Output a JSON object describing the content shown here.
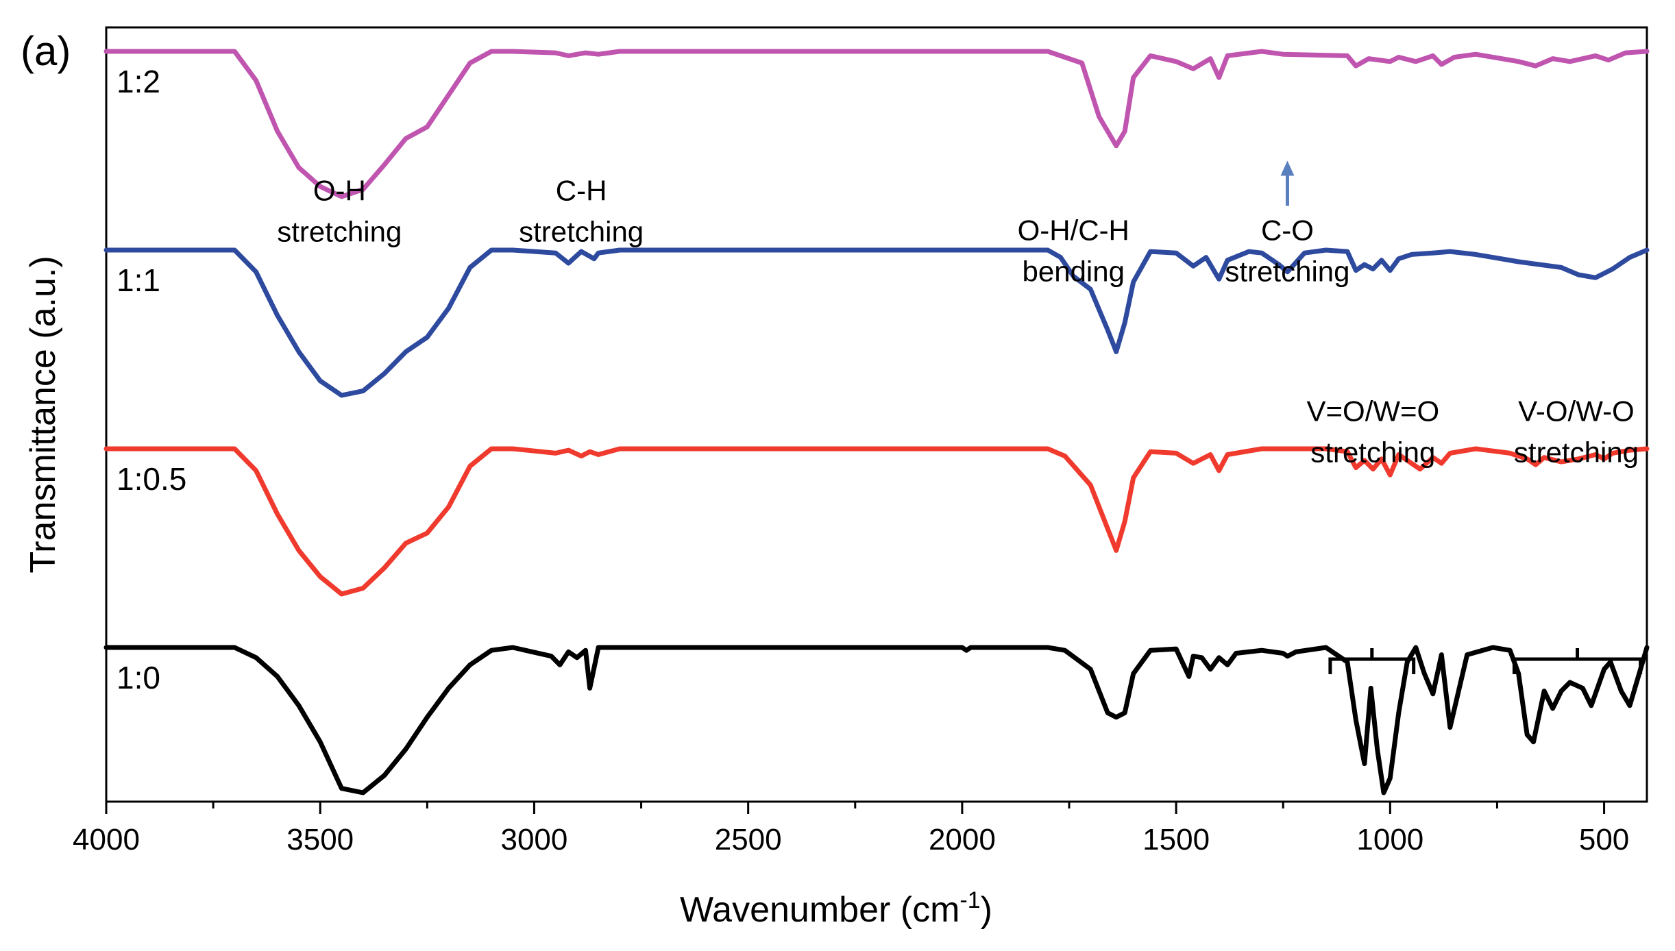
{
  "chart_data": {
    "type": "line",
    "panel_label": "(a)",
    "xlabel": "Wavenumber (cm",
    "xlabel_sup": "-1",
    "xlabel_end": ")",
    "ylabel": "Transmittance (a.u.)",
    "xlim": [
      4000,
      400
    ],
    "x_reversed": true,
    "y_ticks_labeled": false,
    "xticks": [
      4000,
      3500,
      3000,
      2500,
      2000,
      1500,
      1000,
      500
    ],
    "series": [
      {
        "name": "1:2",
        "color": "#c055b0",
        "offset": 3,
        "baseline": 1.0,
        "x": [
          4000,
          3700,
          3650,
          3600,
          3550,
          3500,
          3450,
          3400,
          3350,
          3300,
          3250,
          3200,
          3150,
          3100,
          3050,
          2950,
          2920,
          2880,
          2850,
          2800,
          1800,
          1720,
          1680,
          1640,
          1620,
          1600,
          1560,
          1500,
          1460,
          1420,
          1400,
          1380,
          1300,
          1250,
          1100,
          1080,
          1050,
          1000,
          980,
          940,
          900,
          880,
          850,
          800,
          700,
          660,
          620,
          580,
          520,
          490,
          450,
          400
        ],
        "y": [
          1.0,
          1.0,
          0.8,
          0.45,
          0.2,
          0.07,
          0.0,
          0.05,
          0.22,
          0.4,
          0.48,
          0.7,
          0.92,
          1.0,
          1.0,
          0.99,
          0.97,
          0.99,
          0.98,
          1.0,
          1.0,
          0.92,
          0.55,
          0.35,
          0.45,
          0.82,
          0.97,
          0.93,
          0.88,
          0.95,
          0.82,
          0.97,
          1.0,
          0.98,
          0.97,
          0.9,
          0.95,
          0.93,
          0.96,
          0.93,
          0.97,
          0.91,
          0.96,
          0.98,
          0.93,
          0.9,
          0.95,
          0.93,
          0.97,
          0.94,
          0.99,
          1.0
        ]
      },
      {
        "name": "1:1",
        "color": "#2e4a9e",
        "offset": 2,
        "baseline": 1.0,
        "x": [
          4000,
          3700,
          3650,
          3600,
          3550,
          3500,
          3450,
          3400,
          3350,
          3300,
          3250,
          3200,
          3150,
          3100,
          3050,
          2950,
          2920,
          2890,
          2860,
          2850,
          2800,
          1800,
          1770,
          1740,
          1700,
          1660,
          1640,
          1620,
          1600,
          1560,
          1500,
          1460,
          1430,
          1400,
          1380,
          1330,
          1300,
          1260,
          1240,
          1200,
          1150,
          1100,
          1080,
          1060,
          1040,
          1020,
          1000,
          980,
          950,
          900,
          860,
          800,
          700,
          600,
          560,
          520,
          480,
          440,
          400
        ],
        "y": [
          1.0,
          1.0,
          0.85,
          0.55,
          0.3,
          0.1,
          0.0,
          0.03,
          0.15,
          0.3,
          0.4,
          0.6,
          0.88,
          1.0,
          1.0,
          0.98,
          0.91,
          0.99,
          0.94,
          0.98,
          1.0,
          1.0,
          0.95,
          0.82,
          0.73,
          0.45,
          0.3,
          0.5,
          0.78,
          0.99,
          0.98,
          0.89,
          0.95,
          0.8,
          0.93,
          0.99,
          0.98,
          0.9,
          0.85,
          0.98,
          1.0,
          0.99,
          0.86,
          0.9,
          0.87,
          0.93,
          0.86,
          0.94,
          0.97,
          0.98,
          0.99,
          0.97,
          0.92,
          0.88,
          0.83,
          0.81,
          0.87,
          0.95,
          1.0
        ]
      },
      {
        "name": "1:0.5",
        "color": "#f03a2e",
        "offset": 1,
        "baseline": 1.0,
        "x": [
          4000,
          3700,
          3650,
          3600,
          3550,
          3500,
          3450,
          3400,
          3350,
          3300,
          3250,
          3200,
          3150,
          3100,
          3050,
          2950,
          2920,
          2890,
          2870,
          2850,
          2800,
          1800,
          1760,
          1700,
          1660,
          1640,
          1620,
          1600,
          1560,
          1500,
          1460,
          1420,
          1400,
          1380,
          1300,
          1150,
          1100,
          1080,
          1060,
          1040,
          1020,
          1000,
          980,
          960,
          930,
          900,
          880,
          860,
          800,
          720,
          680,
          660,
          640,
          600,
          560,
          520,
          500,
          480,
          440,
          400
        ],
        "y": [
          1.0,
          1.0,
          0.85,
          0.55,
          0.3,
          0.12,
          0.0,
          0.04,
          0.18,
          0.35,
          0.42,
          0.6,
          0.88,
          1.0,
          1.0,
          0.97,
          0.99,
          0.95,
          0.98,
          0.96,
          1.0,
          1.0,
          0.95,
          0.75,
          0.45,
          0.3,
          0.5,
          0.8,
          0.98,
          0.97,
          0.9,
          0.96,
          0.85,
          0.96,
          1.0,
          1.0,
          0.98,
          0.87,
          0.92,
          0.86,
          0.93,
          0.82,
          0.96,
          0.92,
          0.86,
          0.94,
          0.9,
          0.97,
          1.0,
          0.97,
          0.93,
          0.89,
          0.94,
          0.91,
          0.93,
          0.96,
          0.93,
          0.97,
          0.99,
          1.0
        ]
      },
      {
        "name": "1:0",
        "color": "#000000",
        "offset": 0,
        "baseline": 1.0,
        "x": [
          4000,
          3700,
          3650,
          3600,
          3550,
          3500,
          3450,
          3400,
          3350,
          3300,
          3250,
          3200,
          3150,
          3100,
          3050,
          2960,
          2940,
          2920,
          2900,
          2880,
          2870,
          2850,
          2800,
          2000,
          1990,
          1980,
          1800,
          1760,
          1700,
          1660,
          1640,
          1620,
          1600,
          1560,
          1500,
          1470,
          1460,
          1440,
          1420,
          1400,
          1380,
          1360,
          1300,
          1250,
          1240,
          1220,
          1150,
          1100,
          1080,
          1060,
          1045,
          1030,
          1015,
          1000,
          980,
          960,
          940,
          920,
          900,
          880,
          860,
          820,
          760,
          720,
          700,
          680,
          665,
          640,
          620,
          600,
          580,
          550,
          530,
          500,
          485,
          460,
          440,
          400
        ],
        "y": [
          1.0,
          1.0,
          0.93,
          0.8,
          0.6,
          0.35,
          0.03,
          0.0,
          0.12,
          0.3,
          0.52,
          0.72,
          0.88,
          0.98,
          1.0,
          0.94,
          0.88,
          0.97,
          0.93,
          0.98,
          0.72,
          1.0,
          1.0,
          1.0,
          0.98,
          1.0,
          1.0,
          0.98,
          0.85,
          0.55,
          0.52,
          0.55,
          0.82,
          0.98,
          0.99,
          0.8,
          0.94,
          0.93,
          0.85,
          0.93,
          0.88,
          0.96,
          0.98,
          0.96,
          0.94,
          0.97,
          1.0,
          0.9,
          0.5,
          0.2,
          0.72,
          0.3,
          0.0,
          0.1,
          0.55,
          0.9,
          1.0,
          0.82,
          0.68,
          0.95,
          0.45,
          0.95,
          1.0,
          0.98,
          0.82,
          0.4,
          0.35,
          0.7,
          0.58,
          0.7,
          0.76,
          0.72,
          0.6,
          0.85,
          0.9,
          0.7,
          0.6,
          1.0
        ]
      }
    ],
    "annotations": [
      {
        "id": "oh-stretch",
        "lines": [
          "O-H",
          "stretching"
        ],
        "x": 3455,
        "level": 2.25
      },
      {
        "id": "ch-stretch",
        "lines": [
          "C-H",
          "stretching"
        ],
        "x": 2890,
        "level": 2.25
      },
      {
        "id": "ohch-bending",
        "lines": [
          "O-H/C-H",
          "bending"
        ],
        "x": 1740,
        "level": 2.05
      },
      {
        "id": "co-stretch",
        "lines": [
          "C-O",
          "stretching"
        ],
        "x": 1240,
        "level": 2.05,
        "arrow_from_level": 2.5,
        "arrow_to_level": 2.85,
        "arrow_color": "#5a7fbf"
      },
      {
        "id": "vo-stretch",
        "lines": [
          "V=O/W=O",
          "stretching"
        ],
        "x": 1040,
        "level": 1.14
      },
      {
        "id": "vow-stretch",
        "lines": [
          "V-O/W-O",
          "stretching"
        ],
        "x": 565,
        "level": 1.14
      }
    ],
    "brackets": [
      {
        "id": "vo-bracket",
        "from": 1140,
        "to": 945,
        "level": 1.1
      },
      {
        "id": "vow-bracket",
        "from": 710,
        "to": 415,
        "level": 1.1
      }
    ]
  }
}
